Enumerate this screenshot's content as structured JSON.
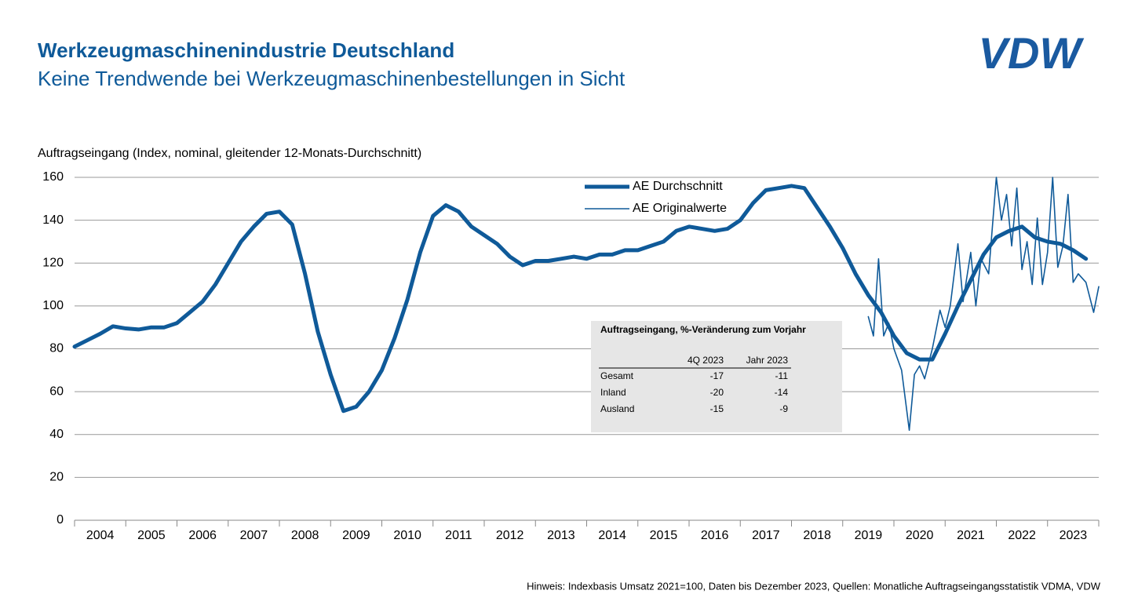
{
  "logo": "VDW",
  "chart_data": {
    "type": "line",
    "title": "Werkzeugmaschinenindustrie Deutschland",
    "subtitle": "Keine Trendwende bei Werkzeugmaschinenbestellungen in Sicht",
    "y_label": "Auftragseingang (Index, nominal, gleitender 12-Monats-Durchschnitt)",
    "note": "Hinweis: Indexbasis Umsatz 2021=100, Daten bis Dezember 2023, Quellen: Monatliche Auftragseingangsstatistik VDMA, VDW",
    "categories": [
      "2004",
      "2005",
      "2006",
      "2007",
      "2008",
      "2009",
      "2010",
      "2011",
      "2012",
      "2013",
      "2014",
      "2015",
      "2016",
      "2017",
      "2018",
      "2019",
      "2020",
      "2021",
      "2022",
      "2023"
    ],
    "xlim": [
      2004,
      2024
    ],
    "ylim": [
      0,
      160
    ],
    "yticks": [
      0,
      20,
      40,
      60,
      80,
      100,
      120,
      140,
      160
    ],
    "grid": true,
    "series": [
      {
        "name": "AE Durchschnitt",
        "color": "#0f5a99",
        "width": 5,
        "x": [
          2004.0,
          2004.25,
          2004.5,
          2004.75,
          2005.0,
          2005.25,
          2005.5,
          2005.75,
          2006.0,
          2006.25,
          2006.5,
          2006.75,
          2007.0,
          2007.25,
          2007.5,
          2007.75,
          2008.0,
          2008.25,
          2008.5,
          2008.75,
          2009.0,
          2009.25,
          2009.5,
          2009.75,
          2010.0,
          2010.25,
          2010.5,
          2010.75,
          2011.0,
          2011.25,
          2011.5,
          2011.75,
          2012.0,
          2012.25,
          2012.5,
          2012.75,
          2013.0,
          2013.25,
          2013.5,
          2013.75,
          2014.0,
          2014.25,
          2014.5,
          2014.75,
          2015.0,
          2015.25,
          2015.5,
          2015.75,
          2016.0,
          2016.25,
          2016.5,
          2016.75,
          2017.0,
          2017.25,
          2017.5,
          2017.75,
          2018.0,
          2018.25,
          2018.5,
          2018.75,
          2019.0,
          2019.25,
          2019.5,
          2019.75,
          2020.0,
          2020.25,
          2020.5,
          2020.75,
          2021.0,
          2021.25,
          2021.5,
          2021.75,
          2022.0,
          2022.25,
          2022.5,
          2022.75,
          2023.0,
          2023.25,
          2023.5,
          2023.75
        ],
        "values": [
          81,
          84,
          87,
          90.5,
          89.5,
          89,
          90,
          90,
          92,
          97,
          102,
          110,
          120,
          130,
          137,
          143,
          144,
          138,
          115,
          88,
          68,
          51,
          53,
          60,
          70,
          85,
          103,
          125,
          142,
          147,
          144,
          137,
          133,
          129,
          123,
          119,
          121,
          121,
          122,
          123,
          122,
          124,
          124,
          126,
          126,
          128,
          130,
          135,
          137,
          136,
          135,
          136,
          140,
          148,
          154,
          155,
          156,
          155,
          146,
          137,
          127,
          115,
          105,
          97,
          86,
          78,
          75,
          75,
          87,
          100,
          112,
          124,
          132,
          135,
          137,
          132,
          130,
          129,
          126,
          122
        ]
      },
      {
        "name": "AE Originalwerte",
        "color": "#0f5a99",
        "width": 1.6,
        "x": [
          2019.5,
          2019.6,
          2019.7,
          2019.8,
          2019.9,
          2020.0,
          2020.15,
          2020.3,
          2020.4,
          2020.5,
          2020.6,
          2020.75,
          2020.9,
          2021.0,
          2021.1,
          2021.25,
          2021.35,
          2021.5,
          2021.6,
          2021.7,
          2021.85,
          2022.0,
          2022.1,
          2022.2,
          2022.3,
          2022.4,
          2022.5,
          2022.6,
          2022.7,
          2022.8,
          2022.9,
          2023.0,
          2023.1,
          2023.2,
          2023.3,
          2023.4,
          2023.5,
          2023.6,
          2023.75,
          2023.9,
          2024.0
        ],
        "values": [
          95,
          86,
          122,
          86,
          92,
          80,
          70,
          42,
          68,
          72,
          66,
          80,
          98,
          90,
          100,
          129,
          102,
          125,
          100,
          122,
          115,
          160,
          140,
          152,
          128,
          155,
          117,
          130,
          110,
          141,
          110,
          125,
          160,
          118,
          128,
          152,
          111,
          115,
          111,
          97,
          109
        ]
      }
    ]
  },
  "table": {
    "title": "Auftragseingang, %-Veränderung zum Vorjahr",
    "columns": [
      "4Q 2023",
      "Jahr 2023"
    ],
    "rows": [
      {
        "label": "Gesamt",
        "values": [
          -17,
          -11
        ]
      },
      {
        "label": "Inland",
        "values": [
          -20,
          -14
        ]
      },
      {
        "label": "Ausland",
        "values": [
          -15,
          -9
        ]
      }
    ]
  }
}
